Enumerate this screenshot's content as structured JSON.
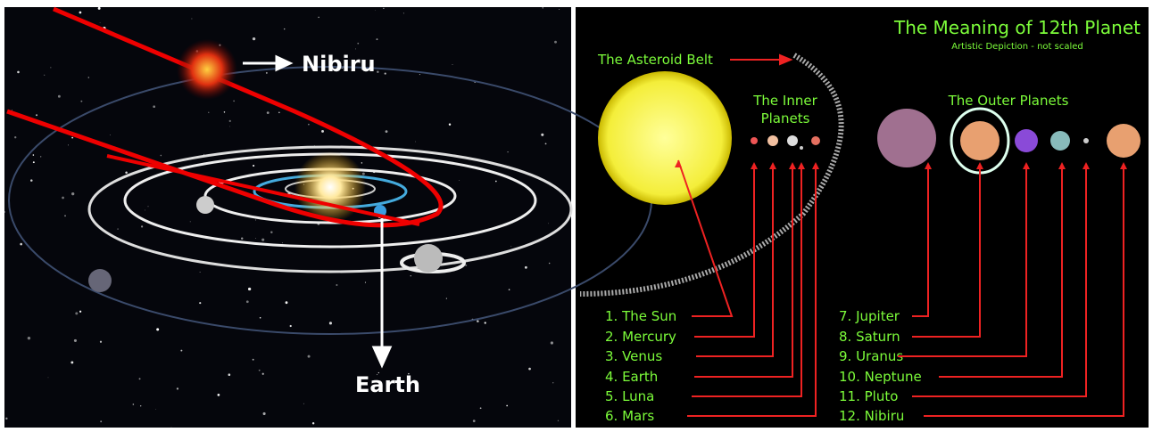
{
  "left": {
    "nibiru": "Nibiru",
    "earth": "Earth"
  },
  "right": {
    "title": "The Meaning of 12th Planet",
    "subtitle": "Artistic Depiction - not scaled",
    "asteroid_belt": "The Asteroid Belt",
    "inner_planets": [
      "The Inner",
      "Planets"
    ],
    "outer_planets": "The Outer Planets",
    "inner_list": [
      "1. The Sun",
      "2. Mercury",
      "3. Venus",
      "4. Earth",
      "5. Luna",
      "6. Mars"
    ],
    "outer_list": [
      "7. Jupiter",
      "8. Saturn",
      "9. Uranus",
      "10. Neptune",
      "11. Pluto",
      "12. Nibiru"
    ]
  }
}
